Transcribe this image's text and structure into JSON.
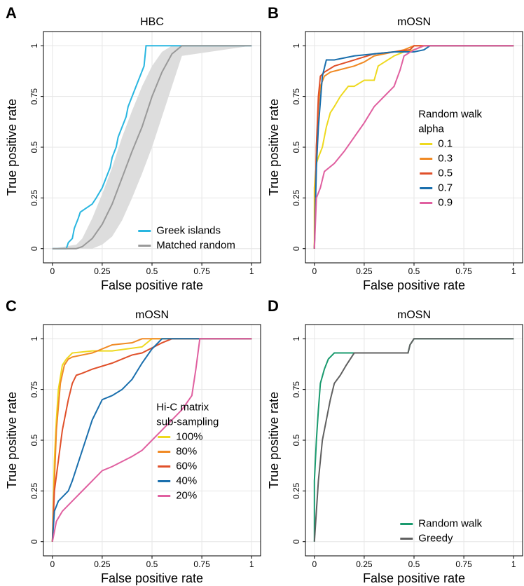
{
  "chart_data": [
    {
      "type": "line",
      "panel": "A",
      "title": "HBC",
      "xlabel": "False positive rate",
      "ylabel": "True positive rate",
      "xlim": [
        -0.045,
        1.045
      ],
      "ylim": [
        -0.07,
        1.07
      ],
      "xticks": [
        0,
        0.25,
        0.5,
        0.75,
        1
      ],
      "yticks": [
        0,
        0.25,
        0.5,
        0.75,
        1
      ],
      "grid": true,
      "legend_position": "bottom-right",
      "series": [
        {
          "name": "Greek islands",
          "color": "#29b6e0",
          "x": [
            0,
            0.07,
            0.08,
            0.1,
            0.11,
            0.13,
            0.14,
            0.17,
            0.2,
            0.22,
            0.25,
            0.27,
            0.29,
            0.3,
            0.32,
            0.33,
            0.35,
            0.37,
            0.38,
            0.4,
            0.42,
            0.44,
            0.46,
            0.47,
            1
          ],
          "values": [
            0,
            0,
            0.03,
            0.05,
            0.1,
            0.15,
            0.18,
            0.2,
            0.22,
            0.25,
            0.3,
            0.35,
            0.4,
            0.45,
            0.5,
            0.55,
            0.6,
            0.65,
            0.7,
            0.75,
            0.8,
            0.85,
            0.9,
            1,
            1
          ]
        },
        {
          "name": "Matched random",
          "color": "#999999",
          "band_color": "#dddddd",
          "x": [
            0,
            0.12,
            0.15,
            0.2,
            0.25,
            0.3,
            0.35,
            0.4,
            0.45,
            0.5,
            0.55,
            0.6,
            0.65,
            1
          ],
          "values": [
            0,
            0,
            0.01,
            0.05,
            0.12,
            0.22,
            0.35,
            0.48,
            0.6,
            0.75,
            0.87,
            0.96,
            1,
            1
          ],
          "lower": [
            0,
            0,
            0,
            0,
            0.02,
            0.06,
            0.14,
            0.25,
            0.37,
            0.5,
            0.65,
            0.8,
            0.95,
            1
          ],
          "upper": [
            0,
            0.02,
            0.05,
            0.15,
            0.27,
            0.4,
            0.55,
            0.68,
            0.8,
            0.9,
            0.97,
            1,
            1,
            1
          ]
        }
      ]
    },
    {
      "type": "line",
      "panel": "B",
      "title": "mOSN",
      "xlabel": "False positive rate",
      "ylabel": "True positive rate",
      "xlim": [
        -0.045,
        1.045
      ],
      "ylim": [
        -0.07,
        1.07
      ],
      "xticks": [
        0,
        0.25,
        0.5,
        0.75,
        1
      ],
      "yticks": [
        0,
        0.25,
        0.5,
        0.75,
        1
      ],
      "grid": true,
      "legend_position": "right",
      "legend_title": [
        "Random walk",
        "alpha"
      ],
      "series": [
        {
          "name": "0.1",
          "color": "#eed91f",
          "x": [
            0,
            0,
            0.01,
            0.02,
            0.04,
            0.06,
            0.08,
            0.1,
            0.13,
            0.17,
            0.2,
            0.25,
            0.3,
            0.32,
            0.4,
            0.45,
            0.5,
            0.55,
            1
          ],
          "values": [
            0,
            0.3,
            0.42,
            0.45,
            0.5,
            0.6,
            0.67,
            0.7,
            0.75,
            0.8,
            0.8,
            0.83,
            0.83,
            0.9,
            0.95,
            0.97,
            0.98,
            1,
            1
          ]
        },
        {
          "name": "0.3",
          "color": "#f08a24",
          "x": [
            0,
            0.01,
            0.02,
            0.03,
            0.05,
            0.08,
            0.12,
            0.2,
            0.25,
            0.3,
            0.35,
            0.4,
            0.45,
            0.5,
            1
          ],
          "values": [
            0,
            0.5,
            0.7,
            0.8,
            0.85,
            0.87,
            0.88,
            0.9,
            0.92,
            0.95,
            0.96,
            0.97,
            0.98,
            1,
            1
          ]
        },
        {
          "name": "0.5",
          "color": "#e0502a",
          "x": [
            0,
            0.01,
            0.02,
            0.03,
            0.05,
            0.1,
            0.2,
            0.3,
            0.4,
            0.48,
            0.5,
            1
          ],
          "values": [
            0,
            0.5,
            0.75,
            0.85,
            0.87,
            0.9,
            0.93,
            0.96,
            0.97,
            0.98,
            1,
            1
          ]
        },
        {
          "name": "0.7",
          "color": "#1a6fad",
          "x": [
            0,
            0.01,
            0.02,
            0.04,
            0.06,
            0.1,
            0.2,
            0.3,
            0.4,
            0.5,
            0.55,
            0.58,
            1
          ],
          "values": [
            0,
            0.4,
            0.6,
            0.85,
            0.93,
            0.93,
            0.95,
            0.96,
            0.97,
            0.97,
            0.98,
            1,
            1
          ]
        },
        {
          "name": "0.9",
          "color": "#e060a0",
          "x": [
            0,
            0.01,
            0.03,
            0.05,
            0.1,
            0.15,
            0.2,
            0.25,
            0.3,
            0.35,
            0.4,
            0.43,
            0.45,
            0.5,
            0.55,
            1
          ],
          "values": [
            0,
            0.25,
            0.3,
            0.38,
            0.42,
            0.48,
            0.55,
            0.62,
            0.7,
            0.75,
            0.8,
            0.88,
            0.95,
            0.98,
            1,
            1
          ]
        }
      ]
    },
    {
      "type": "line",
      "panel": "C",
      "title": "mOSN",
      "xlabel": "False positive rate",
      "ylabel": "True positive rate",
      "xlim": [
        -0.045,
        1.045
      ],
      "ylim": [
        -0.07,
        1.07
      ],
      "xticks": [
        0,
        0.25,
        0.5,
        0.75,
        1
      ],
      "yticks": [
        0,
        0.25,
        0.5,
        0.75,
        1
      ],
      "grid": true,
      "legend_position": "right",
      "legend_title": [
        "Hi-C matrix",
        "sub-sampling"
      ],
      "series": [
        {
          "name": "100%",
          "color": "#eed91f",
          "x": [
            0,
            0.01,
            0.02,
            0.03,
            0.05,
            0.07,
            0.1,
            0.2,
            0.3,
            0.45,
            0.5,
            0.55,
            1
          ],
          "values": [
            0,
            0.4,
            0.6,
            0.75,
            0.87,
            0.9,
            0.93,
            0.94,
            0.94,
            0.96,
            1,
            1,
            1
          ]
        },
        {
          "name": "80%",
          "color": "#f08a24",
          "x": [
            0,
            0.01,
            0.02,
            0.04,
            0.06,
            0.08,
            0.1,
            0.2,
            0.3,
            0.4,
            0.45,
            0.5,
            1
          ],
          "values": [
            0,
            0.3,
            0.55,
            0.78,
            0.87,
            0.9,
            0.91,
            0.93,
            0.97,
            0.98,
            1,
            1,
            1
          ]
        },
        {
          "name": "60%",
          "color": "#e0502a",
          "x": [
            0,
            0.01,
            0.03,
            0.05,
            0.08,
            0.1,
            0.12,
            0.15,
            0.2,
            0.3,
            0.4,
            0.45,
            0.55,
            0.6,
            1
          ],
          "values": [
            0,
            0.25,
            0.4,
            0.55,
            0.7,
            0.78,
            0.82,
            0.83,
            0.85,
            0.88,
            0.92,
            0.93,
            0.98,
            1,
            1
          ]
        },
        {
          "name": "40%",
          "color": "#1a6fad",
          "x": [
            0,
            0.01,
            0.03,
            0.05,
            0.08,
            0.1,
            0.15,
            0.2,
            0.25,
            0.3,
            0.35,
            0.4,
            0.45,
            0.5,
            0.55,
            1
          ],
          "values": [
            0,
            0.15,
            0.2,
            0.22,
            0.25,
            0.3,
            0.45,
            0.6,
            0.7,
            0.72,
            0.75,
            0.8,
            0.88,
            0.95,
            1,
            1
          ]
        },
        {
          "name": "20%",
          "color": "#e060a0",
          "x": [
            0,
            0.01,
            0.02,
            0.05,
            0.1,
            0.15,
            0.2,
            0.25,
            0.3,
            0.4,
            0.45,
            0.5,
            0.55,
            0.6,
            0.65,
            0.7,
            0.72,
            0.74,
            1
          ],
          "values": [
            0,
            0.05,
            0.1,
            0.15,
            0.2,
            0.25,
            0.3,
            0.35,
            0.37,
            0.42,
            0.45,
            0.5,
            0.55,
            0.6,
            0.65,
            0.72,
            0.85,
            1,
            1
          ]
        }
      ]
    },
    {
      "type": "line",
      "panel": "D",
      "title": "mOSN",
      "xlabel": "False positive rate",
      "ylabel": "True positive rate",
      "xlim": [
        -0.045,
        1.045
      ],
      "ylim": [
        -0.07,
        1.07
      ],
      "xticks": [
        0,
        0.25,
        0.5,
        0.75,
        1
      ],
      "yticks": [
        0,
        0.25,
        0.5,
        0.75,
        1
      ],
      "grid": true,
      "legend_position": "bottom-right",
      "series": [
        {
          "name": "Random walk",
          "color": "#1a9a6e",
          "x": [
            0,
            0,
            0.01,
            0.02,
            0.03,
            0.05,
            0.07,
            0.1,
            0.3,
            0.47,
            0.48,
            0.5,
            1
          ],
          "values": [
            0,
            0.3,
            0.5,
            0.65,
            0.78,
            0.85,
            0.9,
            0.93,
            0.93,
            0.93,
            0.97,
            1,
            1
          ]
        },
        {
          "name": "Greedy",
          "color": "#606060",
          "x": [
            0,
            0.01,
            0.02,
            0.04,
            0.06,
            0.08,
            0.1,
            0.13,
            0.16,
            0.2,
            0.3,
            0.47,
            0.48,
            0.5,
            1
          ],
          "values": [
            0,
            0.15,
            0.3,
            0.5,
            0.6,
            0.7,
            0.78,
            0.82,
            0.87,
            0.93,
            0.93,
            0.93,
            0.97,
            1,
            1
          ]
        }
      ]
    }
  ]
}
